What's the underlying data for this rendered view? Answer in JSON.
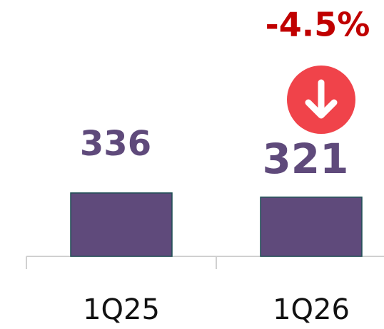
{
  "chart_data": {
    "type": "bar",
    "categories": [
      "1Q25",
      "1Q26"
    ],
    "values": [
      336,
      321
    ],
    "color": "#5f4a7b",
    "ylim": [
      110,
      450
    ],
    "annotation": {
      "text": "-4.5%",
      "color": "#c00000"
    }
  }
}
